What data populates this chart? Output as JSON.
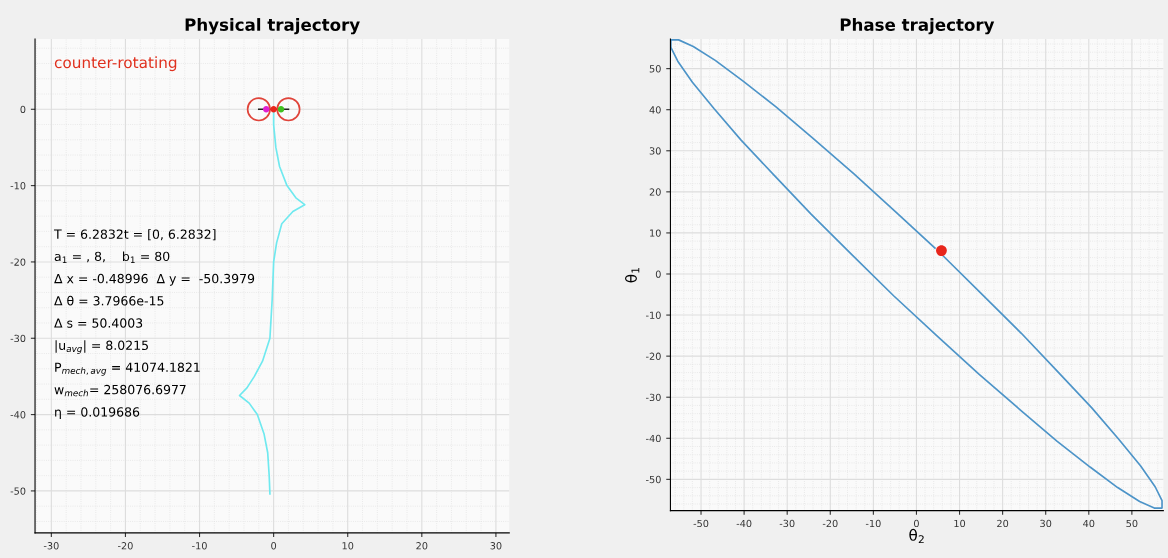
{
  "chart_data": [
    {
      "type": "line",
      "title": "Physical trajectory",
      "xlim": [
        -32.2,
        31.8
      ],
      "ylim": [
        -55.5,
        9.2
      ],
      "xticks": [
        -30,
        -20,
        -10,
        0,
        10,
        20,
        30
      ],
      "yticks": [
        -50,
        -40,
        -30,
        -20,
        -10,
        0
      ],
      "grid": true,
      "legend": false,
      "series": [
        {
          "color": "#6fe9ef",
          "x": [
            0,
            0,
            0.3,
            0.8,
            1.8,
            3,
            4.2,
            2.6,
            1.1,
            0.4,
            0,
            -0.2,
            -0.5,
            -1.5,
            -2.6,
            -3.6,
            -4.6,
            -3.3,
            -2.2,
            -1.3,
            -0.8,
            -0.6,
            -0.5
          ],
          "values": [
            0,
            -2,
            -5,
            -7.5,
            -10,
            -11.6,
            -12.5,
            -13.4,
            -15,
            -17.5,
            -20,
            -25,
            -30,
            -33,
            -35,
            -36.5,
            -37.5,
            -38.5,
            -40,
            -42.5,
            -45,
            -48,
            -50.4
          ]
        },
        {
          "color": "#222222",
          "x": [
            -2,
            2
          ],
          "values": [
            0,
            0
          ]
        },
        {
          "type": "bubble",
          "color": "#e0443a",
          "x": [
            -2,
            2
          ],
          "values": [
            0,
            0
          ],
          "sizes": [
            1,
            1
          ]
        },
        {
          "type": "scatter",
          "marker": "circle",
          "colors": [
            "#e020d0",
            "#e8261c",
            "#40c020"
          ],
          "x": [
            -1,
            0,
            1
          ],
          "values": [
            0,
            0,
            0
          ]
        }
      ],
      "annotations": [
        "counter-rotating",
        "T = 6.2832t = [0, 6.2832]",
        "a$_{1}$ = , 8,    b$_{1}$ = 80",
        "Δ x = -0.48996  Δ y =  -50.3979",
        "Δ θ = 3.7966e-15",
        "Δ s = 50.4003",
        "|u$_{avg}$| = 8.0215",
        "P$_{mech,avg}$ = 41074.1821",
        "w$_{mech}$= 258076.6977",
        "η = 0.019686"
      ]
    },
    {
      "type": "line",
      "title": "Phase trajectory",
      "xlabel": "θ$_{2}$",
      "ylabel": "θ$_{1}$",
      "xlim": [
        -57.1,
        57.3
      ],
      "ylim": [
        -57.6,
        57.2
      ],
      "xticks": [
        -50,
        -40,
        -30,
        -20,
        -10,
        0,
        10,
        20,
        30,
        40,
        50
      ],
      "yticks": [
        -50,
        -40,
        -30,
        -20,
        -10,
        0,
        10,
        20,
        30,
        40,
        50
      ],
      "grid": true,
      "legend": false,
      "series": [
        {
          "color": "#4d94c8",
          "x": [
            4.3,
            -4.7,
            -14.5,
            -24,
            -32.6,
            -40.3,
            -46.7,
            -51.8,
            -55.2,
            -57,
            -57,
            -55.4,
            -52,
            -47,
            -40.7,
            -33,
            -24.4,
            -15,
            -5.3,
            4.7,
            14.5,
            24,
            32.6,
            40.3,
            46.7,
            51.8,
            55.2,
            57,
            57,
            55.4,
            52,
            47,
            40.7,
            33,
            24.4,
            15,
            6.3
          ],
          "values": [
            6.3,
            15,
            24.4,
            33,
            40.7,
            47,
            52,
            55.4,
            57,
            57,
            55.2,
            51.8,
            46.7,
            40.3,
            32.6,
            24,
            14.5,
            4.7,
            -5.3,
            -15,
            -24.4,
            -33,
            -40.7,
            -47,
            -52,
            -55.4,
            -57,
            -57,
            -55.2,
            -51.8,
            -46.7,
            -40.3,
            -32.6,
            -24,
            -14.5,
            -4.7,
            4.3
          ]
        },
        {
          "type": "scatter",
          "marker": "circle",
          "color": "#e8261c",
          "x": [
            5.8
          ],
          "values": [
            5.7
          ]
        }
      ]
    }
  ]
}
